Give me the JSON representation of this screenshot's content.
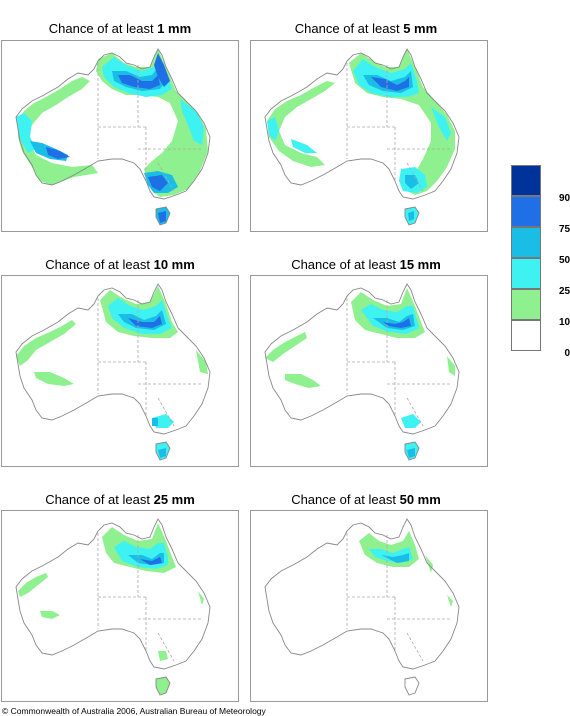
{
  "panels": [
    {
      "title_prefix": "Chance of at least",
      "amount": "1 mm",
      "level": 0
    },
    {
      "title_prefix": "Chance of at least",
      "amount": "5 mm",
      "level": 1
    },
    {
      "title_prefix": "Chance of at least",
      "amount": "10 mm",
      "level": 2
    },
    {
      "title_prefix": "Chance of at least",
      "amount": "15 mm",
      "level": 3
    },
    {
      "title_prefix": "Chance of at least",
      "amount": "25 mm",
      "level": 4
    },
    {
      "title_prefix": "Chance of at least",
      "amount": "50 mm",
      "level": 5
    }
  ],
  "legend": {
    "bins": [
      {
        "color": "#003399"
      },
      {
        "color": "#1f6fe6"
      },
      {
        "color": "#19bde6"
      },
      {
        "color": "#3ef2f2"
      },
      {
        "color": "#8ef08e"
      },
      {
        "color": "#ffffff"
      }
    ],
    "labels": [
      "90%",
      "75%",
      "50%",
      "25%",
      "10%",
      "0%"
    ]
  },
  "colors": {
    "outline": "#888888",
    "state_border": "#aaaaaa",
    "c10": "#8ef08e",
    "c25": "#3ef2f2",
    "c50": "#19bde6",
    "c75": "#1f6fe6",
    "c90": "#003399"
  },
  "footer": {
    "copyright": "© Commonwealth of Australia 2006, Australian Bureau of Meteorology"
  }
}
